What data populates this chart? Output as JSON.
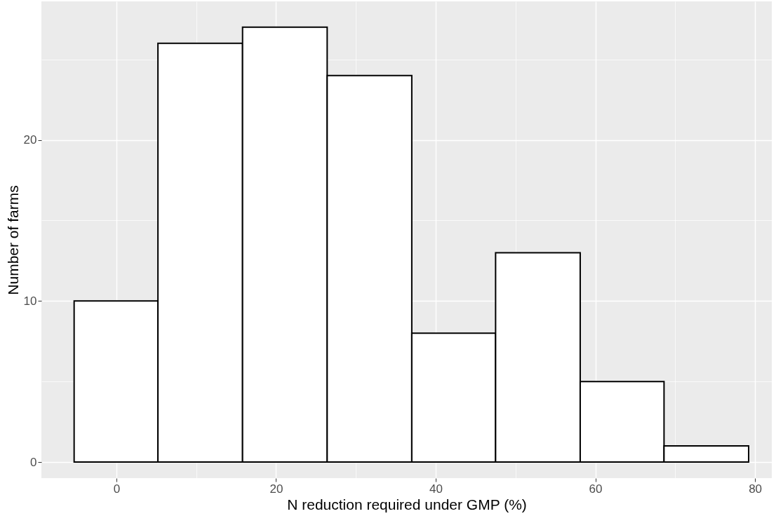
{
  "chart_data": {
    "type": "histogram",
    "xlabel": "N reduction required under GMP (%)",
    "ylabel": "Number of farms",
    "bins": [
      -5.3,
      5.2,
      15.8,
      26.4,
      37.0,
      47.5,
      58.1,
      68.6,
      79.2
    ],
    "values": [
      10,
      26,
      27,
      24,
      8,
      13,
      5,
      1
    ],
    "color": "#ffffff",
    "xlim": [
      -9.4,
      82.1
    ],
    "ylim": [
      -1.0,
      28.6
    ],
    "xticks": [
      0,
      {
        "value": 10,
        "label": null
      },
      20,
      {
        "value": 30,
        "label": null
      },
      40,
      {
        "value": 50,
        "label": null
      },
      60,
      {
        "value": 70,
        "label": null
      },
      80
    ],
    "yticks": [
      0,
      {
        "value": 5,
        "label": null
      },
      10,
      {
        "value": 15,
        "label": null
      },
      20,
      {
        "value": 25,
        "label": null
      }
    ],
    "grid": true
  }
}
